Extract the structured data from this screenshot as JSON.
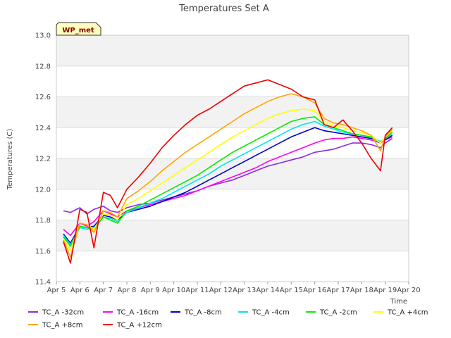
{
  "chart_data": {
    "type": "line",
    "title": "Temperatures Set A",
    "xlabel": "Time",
    "ylabel": "Temperatures (C)",
    "badge": "WP_met",
    "x_ticks": [
      "Apr 5",
      "Apr 6",
      "Apr 7",
      "Apr 8",
      "Apr 9",
      "Apr 10",
      "Apr 11",
      "Apr 12",
      "Apr 13",
      "Apr 14",
      "Apr 15",
      "Apr 16",
      "Apr 17",
      "Apr 18",
      "Apr 19",
      "Apr 20"
    ],
    "xlim": [
      5,
      20
    ],
    "ylim": [
      11.4,
      13.0
    ],
    "y_ticks": [
      "11.4",
      "11.6",
      "11.8",
      "12.0",
      "12.2",
      "12.4",
      "12.6",
      "12.8",
      "13.0"
    ],
    "grid": "horizontal bands",
    "legend_position": "bottom",
    "x_day_of_april": [
      5.3,
      5.6,
      6.0,
      6.3,
      6.6,
      7.0,
      7.3,
      7.6,
      8.0,
      8.5,
      9.0,
      9.5,
      10.0,
      10.5,
      11.0,
      11.5,
      12.0,
      12.5,
      13.0,
      13.5,
      14.0,
      14.5,
      15.0,
      15.5,
      16.0,
      16.4,
      16.8,
      17.2,
      17.6,
      18.0,
      18.4,
      18.8,
      19.0,
      19.3
    ],
    "series": [
      {
        "name": "TC_A -32cm",
        "color": "#8a2be2",
        "values": [
          11.86,
          11.85,
          11.88,
          11.84,
          11.87,
          11.89,
          11.86,
          11.85,
          11.88,
          11.9,
          11.91,
          11.93,
          11.95,
          11.97,
          11.99,
          12.02,
          12.04,
          12.06,
          12.09,
          12.12,
          12.15,
          12.17,
          12.19,
          12.21,
          12.24,
          12.25,
          12.26,
          12.28,
          12.3,
          12.3,
          12.29,
          12.27,
          12.3,
          12.33
        ]
      },
      {
        "name": "TC_A -16cm",
        "color": "#ff00ff",
        "values": [
          11.74,
          11.7,
          11.78,
          11.76,
          11.79,
          11.86,
          11.84,
          11.82,
          11.86,
          11.88,
          11.9,
          11.92,
          11.94,
          11.96,
          11.99,
          12.02,
          12.05,
          12.08,
          12.11,
          12.14,
          12.18,
          12.21,
          12.24,
          12.27,
          12.3,
          12.32,
          12.33,
          12.33,
          12.34,
          12.33,
          12.32,
          12.3,
          12.32,
          12.34
        ]
      },
      {
        "name": "TC_A -8cm",
        "color": "#0000cd",
        "values": [
          11.71,
          11.65,
          11.76,
          11.75,
          11.76,
          11.83,
          11.82,
          11.8,
          11.85,
          11.87,
          11.89,
          11.92,
          11.95,
          11.98,
          12.02,
          12.06,
          12.1,
          12.14,
          12.18,
          12.22,
          12.26,
          12.3,
          12.34,
          12.37,
          12.4,
          12.38,
          12.37,
          12.36,
          12.35,
          12.34,
          12.33,
          12.31,
          12.32,
          12.35
        ]
      },
      {
        "name": "TC_A -4cm",
        "color": "#00e5ee",
        "values": [
          11.7,
          11.64,
          11.75,
          11.74,
          11.75,
          11.82,
          11.81,
          11.79,
          11.85,
          11.88,
          11.91,
          11.94,
          11.98,
          12.02,
          12.06,
          12.1,
          12.15,
          12.19,
          12.23,
          12.27,
          12.31,
          12.35,
          12.39,
          12.42,
          12.44,
          12.41,
          12.39,
          12.37,
          12.36,
          12.35,
          12.34,
          12.31,
          12.33,
          12.36
        ]
      },
      {
        "name": "TC_A -2cm",
        "color": "#00ee00",
        "values": [
          11.69,
          11.63,
          11.76,
          11.75,
          11.74,
          11.82,
          11.8,
          11.78,
          11.86,
          11.89,
          11.93,
          11.97,
          12.01,
          12.05,
          12.09,
          12.14,
          12.19,
          12.24,
          12.28,
          12.32,
          12.36,
          12.4,
          12.44,
          12.46,
          12.47,
          12.42,
          12.4,
          12.38,
          12.36,
          12.35,
          12.34,
          12.3,
          12.33,
          12.37
        ]
      },
      {
        "name": "TC_A +4cm",
        "color": "#ffff00",
        "values": [
          11.68,
          11.6,
          11.78,
          11.77,
          11.74,
          11.84,
          11.83,
          11.8,
          11.9,
          11.94,
          11.99,
          12.04,
          12.09,
          12.14,
          12.19,
          12.24,
          12.29,
          12.34,
          12.38,
          12.42,
          12.46,
          12.49,
          12.51,
          12.52,
          12.51,
          12.44,
          12.41,
          12.4,
          12.38,
          12.37,
          12.35,
          12.3,
          12.34,
          12.38
        ]
      },
      {
        "name": "TC_A +8cm",
        "color": "#ffa500",
        "values": [
          11.67,
          11.56,
          11.78,
          11.77,
          11.72,
          11.86,
          11.85,
          11.82,
          11.94,
          11.99,
          12.05,
          12.12,
          12.18,
          12.24,
          12.29,
          12.34,
          12.39,
          12.44,
          12.49,
          12.53,
          12.57,
          12.6,
          12.62,
          12.6,
          12.56,
          12.46,
          12.43,
          12.42,
          12.4,
          12.38,
          12.35,
          12.25,
          12.34,
          12.39
        ]
      },
      {
        "name": "TC_A +12cm",
        "color": "#ee0000",
        "values": [
          11.66,
          11.52,
          11.87,
          11.85,
          11.62,
          11.98,
          11.96,
          11.88,
          12.0,
          12.08,
          12.17,
          12.27,
          12.35,
          12.42,
          12.48,
          12.52,
          12.57,
          12.62,
          12.67,
          12.69,
          12.71,
          12.68,
          12.65,
          12.6,
          12.58,
          12.42,
          12.4,
          12.45,
          12.38,
          12.3,
          12.2,
          12.12,
          12.35,
          12.4
        ]
      }
    ]
  }
}
